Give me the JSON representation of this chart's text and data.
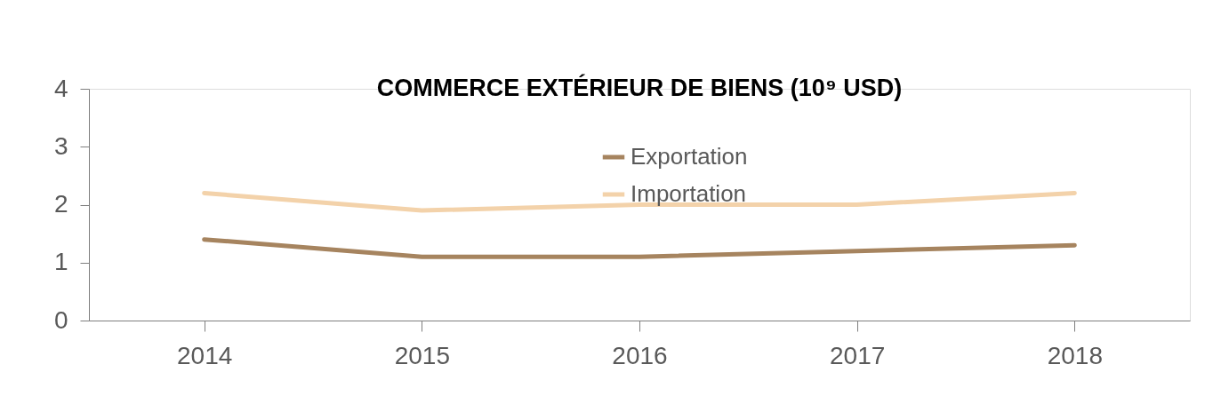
{
  "chart_data": {
    "type": "line",
    "title": "COMMERCE EXTÉRIEUR DE BIENS (10⁹ USD)",
    "categories": [
      "2014",
      "2015",
      "2016",
      "2017",
      "2018"
    ],
    "series": [
      {
        "name": "Exportation",
        "color": "#a6845f",
        "values": [
          1.4,
          1.1,
          1.1,
          1.2,
          1.3
        ]
      },
      {
        "name": "Importation",
        "color": "#f3d2aa",
        "values": [
          2.2,
          1.9,
          2.0,
          2.0,
          2.2
        ]
      }
    ],
    "ylim": [
      0,
      4
    ],
    "yticks": [
      0,
      1,
      2,
      3,
      4
    ],
    "grid": false,
    "legend": "top",
    "marker": "none",
    "line_style": "solid"
  }
}
